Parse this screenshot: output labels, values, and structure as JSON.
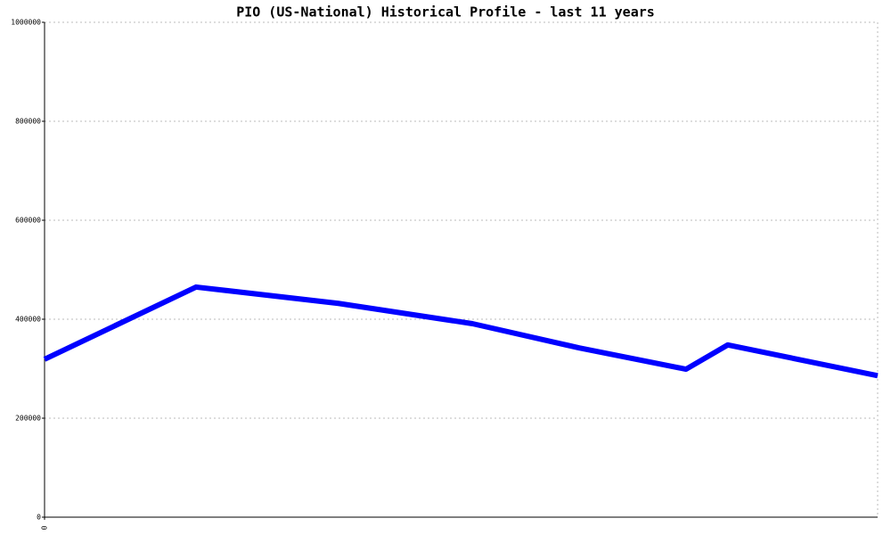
{
  "chart_data": {
    "type": "line",
    "title": "PIO (US-National) Historical Profile - last 11 years",
    "x": [
      0,
      2.0,
      3.88,
      5.65,
      7.06,
      8.47,
      9.02,
      11
    ],
    "series": [
      {
        "color": "#0000ff",
        "values": [
          319000,
          465000,
          432000,
          391000,
          342000,
          299000,
          348000,
          286000
        ]
      }
    ],
    "xlim": [
      0,
      11
    ],
    "xticks": [
      0
    ],
    "ylim": [
      0,
      1000000
    ],
    "yticks": [
      0,
      200000,
      400000,
      600000,
      800000,
      1000000
    ],
    "grid": true
  }
}
